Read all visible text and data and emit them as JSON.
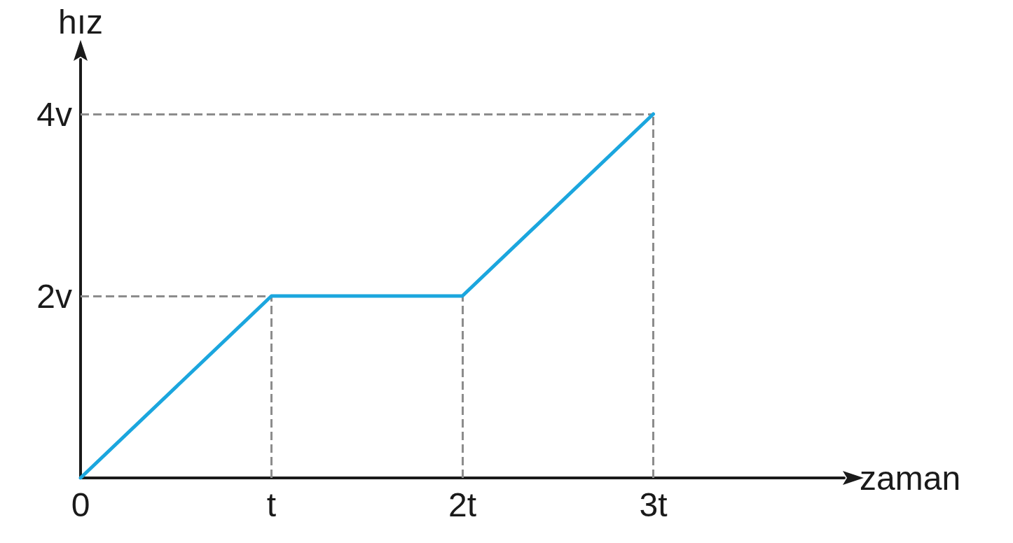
{
  "chart_data": {
    "type": "line",
    "xlabel": "zaman",
    "ylabel": "hız",
    "x": [
      0,
      1,
      2,
      3
    ],
    "series": [
      {
        "color": "#1ba6de",
        "values": [
          0,
          2,
          2,
          4
        ]
      }
    ],
    "xlim": [
      0,
      4
    ],
    "ylim": [
      0,
      4.6
    ],
    "xticks": [
      {
        "value": 0,
        "label": "0"
      },
      {
        "value": 1,
        "label": "t"
      },
      {
        "value": 2,
        "label": "2t"
      },
      {
        "value": 3,
        "label": "3t"
      }
    ],
    "yticks": [
      {
        "value": 2,
        "label": "2v"
      },
      {
        "value": 4,
        "label": "4v"
      }
    ],
    "ref_lines": [
      {
        "axis": "x",
        "value": 1,
        "color": "#8c8c8c",
        "line_style": "dashed"
      },
      {
        "axis": "x",
        "value": 2,
        "color": "#8c8c8c",
        "line_style": "dashed"
      },
      {
        "axis": "x",
        "value": 3,
        "color": "#8c8c8c",
        "line_style": "dashed"
      },
      {
        "axis": "y",
        "value": 2,
        "color": "#8c8c8c",
        "line_style": "dashed"
      },
      {
        "axis": "y",
        "value": 4,
        "color": "#8c8c8c",
        "line_style": "dashed"
      }
    ],
    "grid": false,
    "marker": "none",
    "line_style": "solid"
  }
}
